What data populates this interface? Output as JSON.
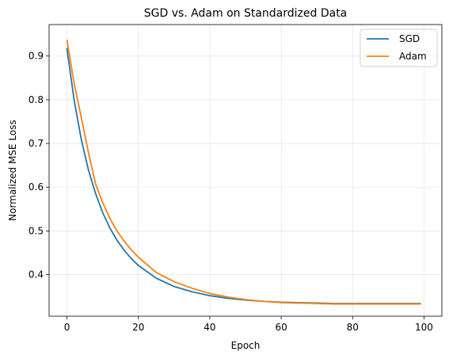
{
  "chart_data": {
    "type": "line",
    "title": "SGD vs. Adam on Standardized Data",
    "xlabel": "Epoch",
    "ylabel": "Normalized MSE Loss",
    "xlim": [
      -5,
      105
    ],
    "ylim": [
      0.305,
      0.972
    ],
    "xticks": [
      0,
      20,
      40,
      60,
      80,
      100
    ],
    "yticks": [
      0.4,
      0.5,
      0.6,
      0.7,
      0.8,
      0.9
    ],
    "xtick_labels": [
      "0",
      "20",
      "40",
      "60",
      "80",
      "100"
    ],
    "ytick_labels": [
      "0.4",
      "0.5",
      "0.6",
      "0.7",
      "0.8",
      "0.9"
    ],
    "grid": true,
    "legend_position": "upper-right",
    "x": [
      0,
      2,
      4,
      6,
      8,
      10,
      12,
      14,
      16,
      18,
      20,
      25,
      30,
      35,
      40,
      45,
      50,
      55,
      60,
      65,
      70,
      75,
      80,
      85,
      90,
      95,
      99
    ],
    "series": [
      {
        "name": "SGD",
        "color": "#1f77b4",
        "values": [
          0.917,
          0.8,
          0.71,
          0.64,
          0.586,
          0.542,
          0.507,
          0.479,
          0.456,
          0.437,
          0.421,
          0.392,
          0.373,
          0.361,
          0.352,
          0.346,
          0.342,
          0.339,
          0.337,
          0.336,
          0.335,
          0.334,
          0.334,
          0.334,
          0.334,
          0.334,
          0.334
        ]
      },
      {
        "name": "Adam",
        "color": "#ff7f0e",
        "values": [
          0.936,
          0.838,
          0.76,
          0.68,
          0.608,
          0.565,
          0.529,
          0.5,
          0.477,
          0.457,
          0.44,
          0.405,
          0.384,
          0.369,
          0.357,
          0.349,
          0.343,
          0.339,
          0.336,
          0.335,
          0.334,
          0.333,
          0.333,
          0.333,
          0.333,
          0.333,
          0.333
        ]
      }
    ]
  }
}
